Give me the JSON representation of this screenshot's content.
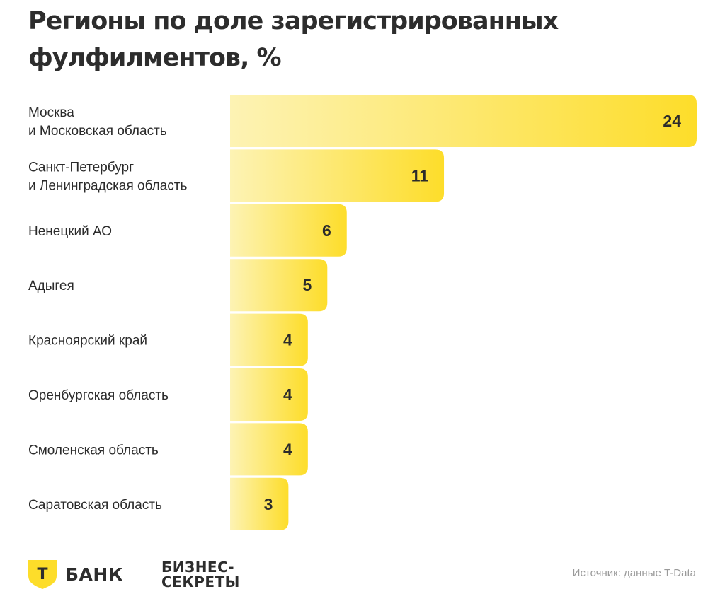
{
  "title_lines": [
    "Регионы по доле зарегистрированных",
    "фулфилментов, %"
  ],
  "chart_data": {
    "type": "bar",
    "orientation": "horizontal",
    "categories": [
      [
        "Москва",
        "и Московская область"
      ],
      [
        "Санкт-Петербург",
        "и Ленинградская область"
      ],
      [
        "Ненецкий АО"
      ],
      [
        "Адыгея"
      ],
      [
        "Красноярский край"
      ],
      [
        "Оренбургская область"
      ],
      [
        "Смоленская область"
      ],
      [
        "Саратовская область"
      ]
    ],
    "values": [
      24,
      11,
      6,
      5,
      4,
      4,
      4,
      3
    ],
    "xlim": [
      0,
      24
    ],
    "colors": {
      "bar_start": "#fdf3b4",
      "bar_end": "#fddd2a"
    }
  },
  "footer": {
    "brand_mark": "T",
    "brand": "БАНК",
    "brand_icon": "t-bank-shield-icon",
    "partner_lines": [
      "БИЗНЕС-",
      "СЕКРЕТЫ"
    ],
    "source": "Источник: данные T-Data"
  }
}
